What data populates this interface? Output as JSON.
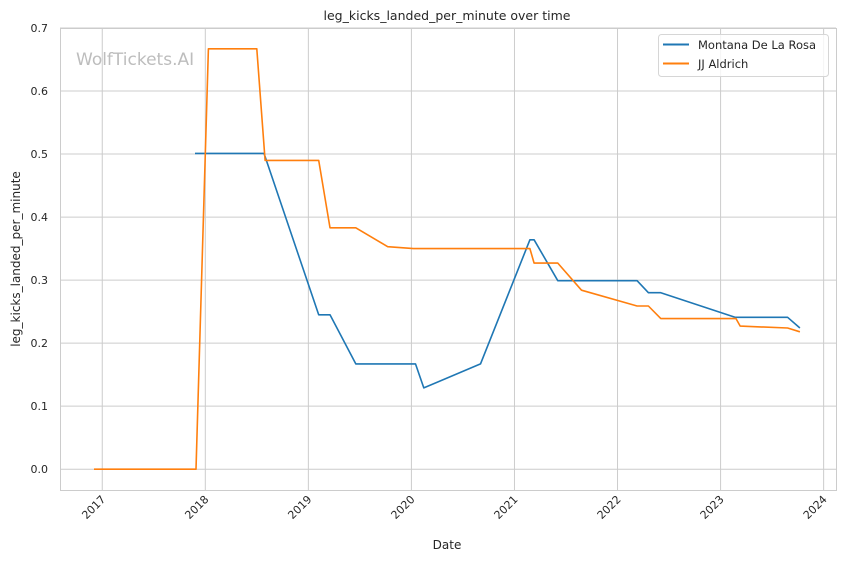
{
  "chart_data": {
    "type": "line",
    "title": "leg_kicks_landed_per_minute over time",
    "xlabel": "Date",
    "ylabel": "leg_kicks_landed_per_minute",
    "watermark": "WolfTickets.AI",
    "xlim": [
      2016.59,
      2024.12
    ],
    "ylim": [
      -0.033,
      0.7
    ],
    "grid": true,
    "legend_position": "top-right",
    "x_ticks": [
      {
        "value": 2017,
        "label": "2017"
      },
      {
        "value": 2018,
        "label": "2018"
      },
      {
        "value": 2019,
        "label": "2019"
      },
      {
        "value": 2020,
        "label": "2020"
      },
      {
        "value": 2021,
        "label": "2021"
      },
      {
        "value": 2022,
        "label": "2022"
      },
      {
        "value": 2023,
        "label": "2023"
      },
      {
        "value": 2024,
        "label": "2024"
      }
    ],
    "y_ticks": [
      {
        "value": 0.0,
        "label": "0.0"
      },
      {
        "value": 0.1,
        "label": "0.1"
      },
      {
        "value": 0.2,
        "label": "0.2"
      },
      {
        "value": 0.3,
        "label": "0.3"
      },
      {
        "value": 0.4,
        "label": "0.4"
      },
      {
        "value": 0.5,
        "label": "0.5"
      },
      {
        "value": 0.6,
        "label": "0.6"
      },
      {
        "value": 0.7,
        "label": "0.7"
      }
    ],
    "series": [
      {
        "name": "Montana De La Rosa",
        "color": "#1f77b4",
        "x": [
          2017.9,
          2018.57,
          2019.1,
          2019.21,
          2019.46,
          2020.04,
          2020.12,
          2020.67,
          2021.15,
          2021.19,
          2021.42,
          2022.19,
          2022.3,
          2022.42,
          2023.14,
          2023.65,
          2023.77
        ],
        "y": [
          0.501,
          0.501,
          0.245,
          0.245,
          0.167,
          0.167,
          0.129,
          0.167,
          0.364,
          0.364,
          0.299,
          0.299,
          0.28,
          0.28,
          0.241,
          0.241,
          0.224
        ]
      },
      {
        "name": "JJ Aldrich",
        "color": "#ff7f0e",
        "x": [
          2016.92,
          2017.91,
          2018.03,
          2018.5,
          2018.58,
          2019.1,
          2019.21,
          2019.46,
          2019.77,
          2020.02,
          2021.15,
          2021.19,
          2021.42,
          2021.65,
          2022.19,
          2022.3,
          2022.42,
          2023.15,
          2023.19,
          2023.65,
          2023.77
        ],
        "y": [
          0.0,
          0.0,
          0.667,
          0.667,
          0.49,
          0.49,
          0.383,
          0.383,
          0.353,
          0.35,
          0.35,
          0.327,
          0.327,
          0.284,
          0.259,
          0.259,
          0.239,
          0.239,
          0.227,
          0.224,
          0.218
        ]
      }
    ]
  }
}
